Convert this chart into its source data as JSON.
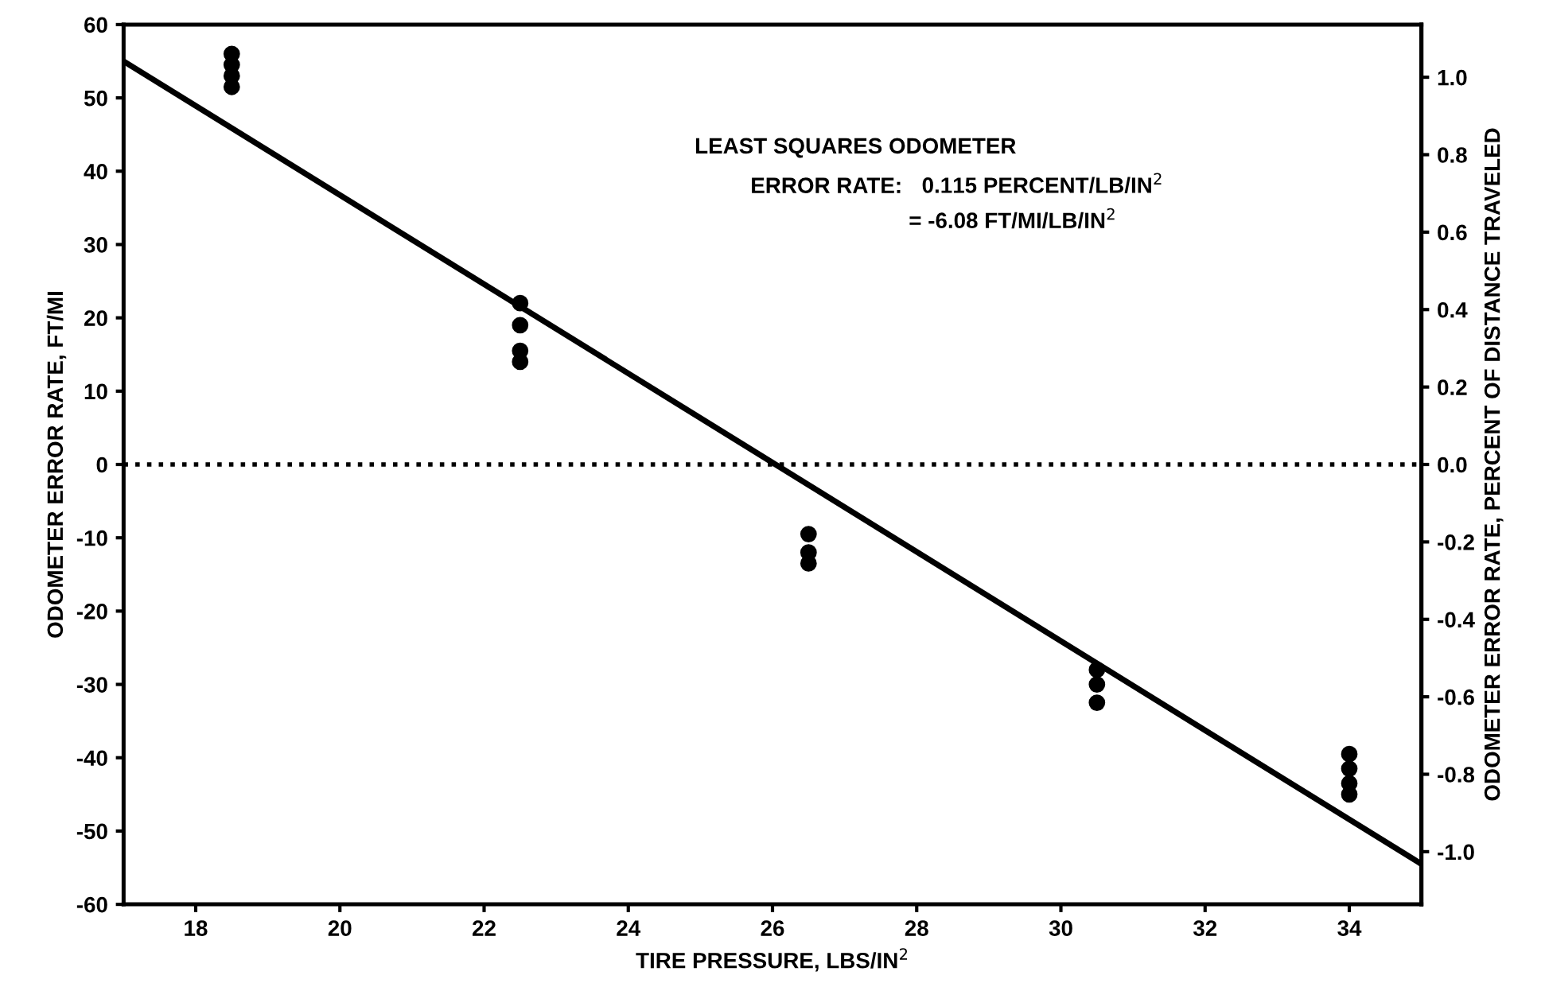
{
  "chart_data": {
    "type": "scatter",
    "xlabel": "TIRE PRESSURE, LBS/IN$^{2}$",
    "ylabel": "ODOMETER ERROR RATE, FT/MI",
    "y2label": "ODOMETER ERROR RATE, PERCENT OF DISTANCE TRAVELED",
    "xlim": [
      17,
      35
    ],
    "xticks": [
      18,
      20,
      22,
      24,
      26,
      28,
      30,
      32,
      34
    ],
    "ylim": [
      -60,
      60
    ],
    "yticks": [
      {
        "value": -60,
        "label": "-60"
      },
      {
        "value": -50,
        "label": "-50"
      },
      {
        "value": -40,
        "label": "-40"
      },
      {
        "value": -30,
        "label": "-30"
      },
      {
        "value": -20,
        "label": "-20"
      },
      {
        "value": -10,
        "label": "-10"
      },
      0,
      10,
      20,
      30,
      40,
      50,
      60
    ],
    "y2lim": [
      -1.136,
      1.136
    ],
    "y2ticks": [
      {
        "value": -1.0,
        "label": "-1.0"
      },
      {
        "value": -0.8,
        "label": "-0.8"
      },
      {
        "value": -0.6,
        "label": "-0.6"
      },
      {
        "value": -0.4,
        "label": "-0.4"
      },
      {
        "value": -0.2,
        "label": "-0.2"
      },
      {
        "value": 0.0,
        "label": "0.0"
      },
      {
        "value": 0.2,
        "label": "0.2"
      },
      {
        "value": 0.4,
        "label": "0.4"
      },
      {
        "value": 0.6,
        "label": "0.6"
      },
      {
        "value": 0.8,
        "label": "0.8"
      },
      {
        "value": 1.0,
        "label": "1.0"
      }
    ],
    "series": [
      {
        "color": "#000000",
        "marker": "circle",
        "x": [
          18.5,
          18.5,
          18.5,
          18.5,
          22.5,
          22.5,
          22.5,
          22.5,
          26.5,
          26.5,
          26.5,
          30.5,
          30.5,
          30.5,
          34,
          34,
          34,
          34
        ],
        "values": [
          56,
          54.5,
          53,
          51.5,
          22,
          19,
          15.5,
          14,
          -9.5,
          -12,
          -13.5,
          -28,
          -30,
          -32.5,
          -39.5,
          -41.5,
          -43.5,
          -45
        ]
      },
      {
        "type": "line",
        "color": "#000000",
        "line_style": "solid",
        "x": [
          17,
          35
        ],
        "values": [
          55,
          -54.5
        ]
      }
    ],
    "ref_lines": [
      {
        "axis": "y",
        "value": 0,
        "line_style": "dotted",
        "color": "#000000"
      }
    ],
    "annotations": [
      "LEAST SQUARES ODOMETER",
      "ERROR RATE:",
      "0.115 PERCENT/LB/IN$^{2}$",
      "= -6.08 FT/MI/LB/IN$^{2}$"
    ],
    "grid": false,
    "legend": false
  }
}
